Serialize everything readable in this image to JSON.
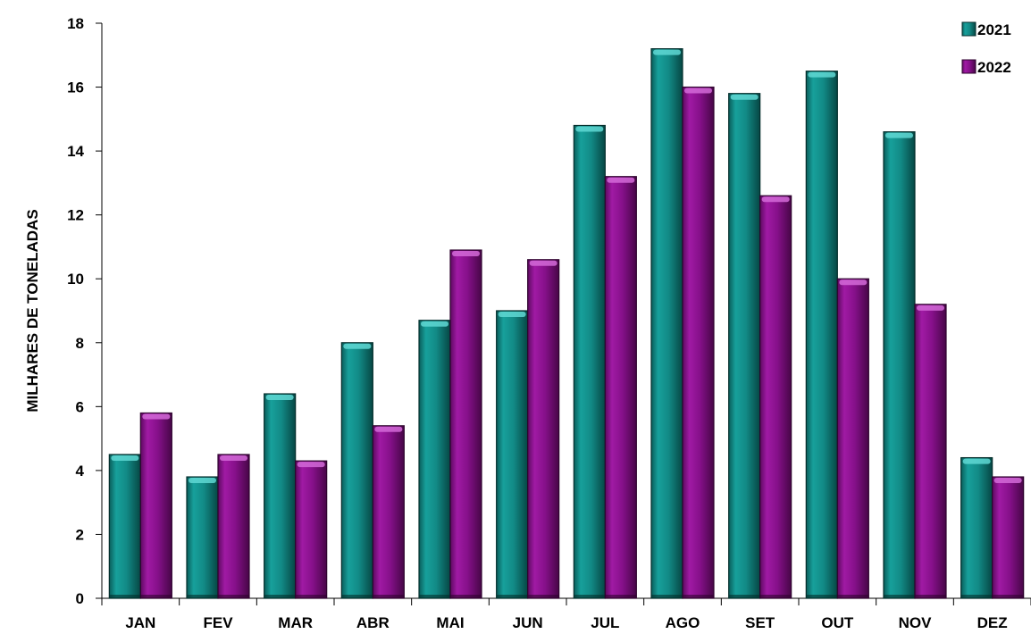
{
  "chart_data": {
    "type": "bar",
    "title": "",
    "xlabel": "",
    "ylabel": "MILHARES DE TONELADAS",
    "ylim": [
      0,
      18
    ],
    "yticks": [
      0,
      2,
      4,
      6,
      8,
      10,
      12,
      14,
      16,
      18
    ],
    "grid": false,
    "legend_position": "top-right",
    "categories": [
      "JAN",
      "FEV",
      "MAR",
      "ABR",
      "MAI",
      "JUN",
      "JUL",
      "AGO",
      "SET",
      "OUT",
      "NOV",
      "DEZ"
    ],
    "series": [
      {
        "name": "2021",
        "color": "#128a86",
        "values": [
          4.5,
          3.8,
          6.4,
          8.0,
          8.7,
          9.0,
          14.8,
          17.2,
          15.8,
          16.5,
          14.6,
          4.4
        ]
      },
      {
        "name": "2022",
        "color": "#86108a",
        "values": [
          5.8,
          4.5,
          4.3,
          5.4,
          10.9,
          10.6,
          13.2,
          16.0,
          12.6,
          10.0,
          9.2,
          3.8
        ]
      }
    ]
  }
}
